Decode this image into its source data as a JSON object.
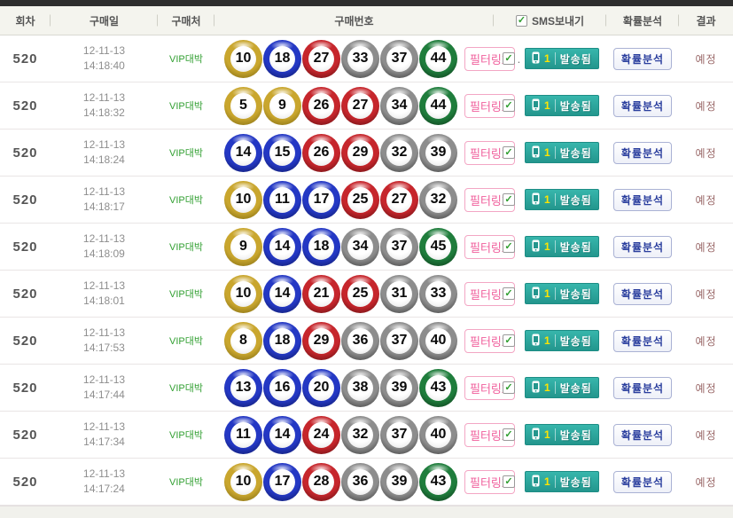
{
  "header": {
    "round": "회차",
    "date": "구매일",
    "store": "구매처",
    "numbers": "구매번호",
    "sms": "SMS보내기",
    "sms_checkbox_checked": true,
    "analysis": "확률분석",
    "result": "결과"
  },
  "labels": {
    "filtering_badge": "필터링X",
    "sent_button": "발송됨",
    "sent_count": "1",
    "analysis_button": "확률분석",
    "check_glyph": "✓",
    "trailing_dot": "."
  },
  "colors": {
    "top_bar": "#2e2e2e",
    "accent_teal": "#2aa9a0",
    "badge_pink": "#f0609d",
    "store_green": "#33a033",
    "result_brown": "#9b6a6a",
    "check_green": "#2f9e2f",
    "balls": {
      "yellow": {
        "ring": "#c9a62e",
        "edge": "#7a660f"
      },
      "blue": {
        "ring": "#2438c4",
        "edge": "#0d1760"
      },
      "red": {
        "ring": "#c6262c",
        "edge": "#5e0e10"
      },
      "gray": {
        "ring": "#8d8d8d",
        "edge": "#373737"
      },
      "green": {
        "ring": "#1f7d3c",
        "edge": "#0b3517"
      }
    },
    "ball_ranges": {
      "yellow": "1-10",
      "blue": "11-20",
      "red": "21-30",
      "gray": "31-40",
      "green": "41-45"
    }
  },
  "rows": [
    {
      "round": "520",
      "date": "12-11-13",
      "time": "14:18:40",
      "store": "VIP대박",
      "numbers": [
        10,
        18,
        27,
        33,
        37,
        44
      ],
      "sms_checked": true,
      "trailing_dot": true
    },
    {
      "round": "520",
      "date": "12-11-13",
      "time": "14:18:32",
      "store": "VIP대박",
      "numbers": [
        5,
        9,
        26,
        27,
        34,
        44
      ],
      "sms_checked": true,
      "trailing_dot": false
    },
    {
      "round": "520",
      "date": "12-11-13",
      "time": "14:18:24",
      "store": "VIP대박",
      "numbers": [
        14,
        15,
        26,
        29,
        32,
        39
      ],
      "sms_checked": true,
      "trailing_dot": false
    },
    {
      "round": "520",
      "date": "12-11-13",
      "time": "14:18:17",
      "store": "VIP대박",
      "numbers": [
        10,
        11,
        17,
        25,
        27,
        32
      ],
      "sms_checked": true,
      "trailing_dot": false
    },
    {
      "round": "520",
      "date": "12-11-13",
      "time": "14:18:09",
      "store": "VIP대박",
      "numbers": [
        9,
        14,
        18,
        34,
        37,
        45
      ],
      "sms_checked": true,
      "trailing_dot": false
    },
    {
      "round": "520",
      "date": "12-11-13",
      "time": "14:18:01",
      "store": "VIP대박",
      "numbers": [
        10,
        14,
        21,
        25,
        31,
        33
      ],
      "sms_checked": true,
      "trailing_dot": false
    },
    {
      "round": "520",
      "date": "12-11-13",
      "time": "14:17:53",
      "store": "VIP대박",
      "numbers": [
        8,
        18,
        29,
        36,
        37,
        40
      ],
      "sms_checked": true,
      "trailing_dot": false
    },
    {
      "round": "520",
      "date": "12-11-13",
      "time": "14:17:44",
      "store": "VIP대박",
      "numbers": [
        13,
        16,
        20,
        38,
        39,
        43
      ],
      "sms_checked": true,
      "trailing_dot": false
    },
    {
      "round": "520",
      "date": "12-11-13",
      "time": "14:17:34",
      "store": "VIP대박",
      "numbers": [
        11,
        14,
        24,
        32,
        37,
        40
      ],
      "sms_checked": true,
      "trailing_dot": false
    },
    {
      "round": "520",
      "date": "12-11-13",
      "time": "14:17:24",
      "store": "VIP대박",
      "numbers": [
        10,
        17,
        28,
        36,
        39,
        43
      ],
      "sms_checked": true,
      "trailing_dot": false
    }
  ]
}
